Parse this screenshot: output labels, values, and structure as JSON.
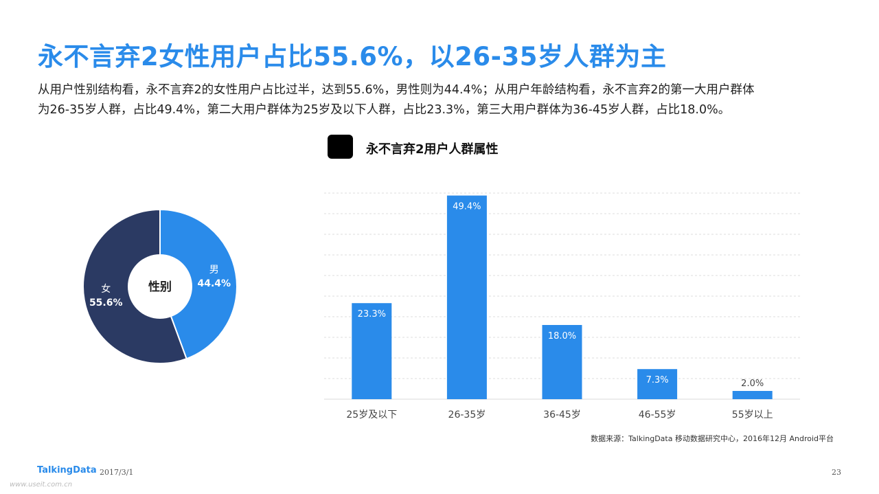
{
  "title": "永不言弃2女性用户占比55.6%，以26-35岁人群为主",
  "description": "从用户性别结构看，永不言弃2的女性用户占比过半，达到55.6%，男性则为44.4%；从用户年龄结构看，永不言弃2的第一大用户群体\n为26-35岁人群，占比49.4%，第二大用户群体为25岁及以下人群，占比23.3%，第三大用户群体为36-45岁人群，占比18.0%。",
  "legend_label": "永不言弃2用户人群属性",
  "source": "数据来源：TalkingData 移动数据研究中心，2016年12月 Android平台",
  "footer": {
    "logo": "TalkingData",
    "date": "2017/3/1",
    "page": "23",
    "watermark": "www.useit.com.cn"
  },
  "colors": {
    "accent": "#2a8bea",
    "dark_navy": "#2b3a63",
    "bar": "#2a8bea"
  },
  "chart_data": [
    {
      "type": "pie",
      "center_label": "性别",
      "slices": [
        {
          "name": "男",
          "value": 44.4,
          "label": "44.4%",
          "color": "#2a8bea"
        },
        {
          "name": "女",
          "value": 55.6,
          "label": "55.6%",
          "color": "#2b3a63"
        }
      ]
    },
    {
      "type": "bar",
      "categories": [
        "25岁及以下",
        "26-35岁",
        "36-45岁",
        "46-55岁",
        "55岁以上"
      ],
      "values": [
        23.3,
        49.4,
        18.0,
        7.3,
        2.0
      ],
      "value_labels": [
        "23.3%",
        "49.4%",
        "18.0%",
        "7.3%",
        "2.0%"
      ],
      "ylim": [
        0,
        50
      ],
      "grid": true
    }
  ]
}
